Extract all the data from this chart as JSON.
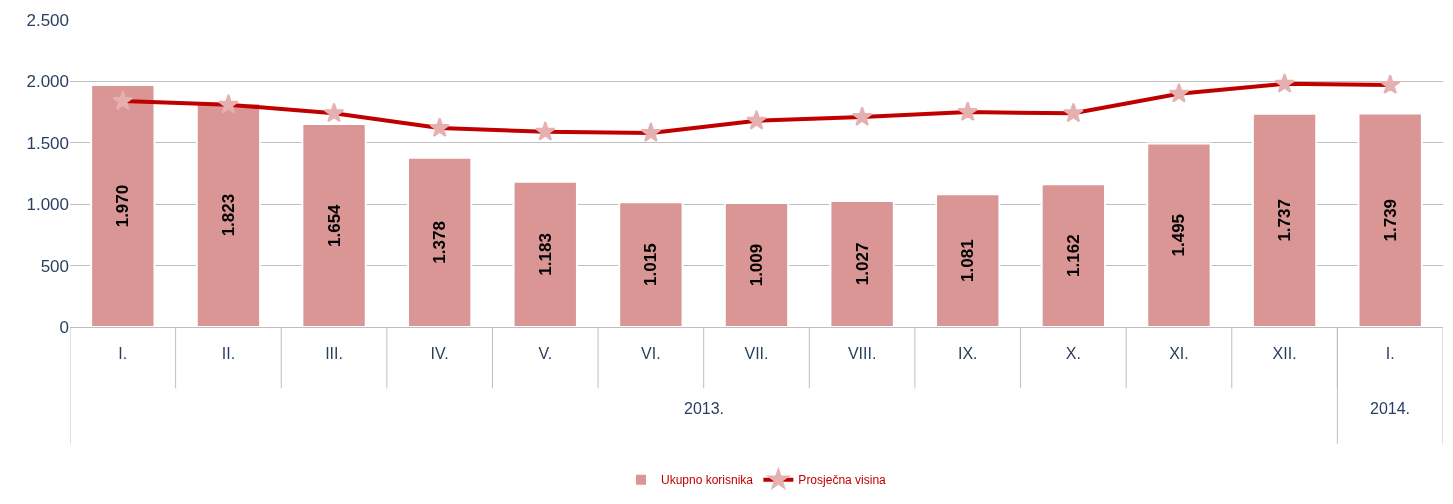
{
  "chart_data": {
    "type": "bar",
    "categories": [
      "I.",
      "II.",
      "III.",
      "IV.",
      "V.",
      "VI.",
      "VII.",
      "VIII.",
      "IX.",
      "X.",
      "XI.",
      "XII.",
      "I."
    ],
    "series": [
      {
        "name": "Ukupno korisnika",
        "color": "#d99694",
        "values": [
          1970,
          1823,
          1654,
          1378,
          1183,
          1015,
          1009,
          1027,
          1081,
          1162,
          1495,
          1737,
          1739
        ],
        "value_labels": [
          "1.970",
          "1.823",
          "1.654",
          "1.378",
          "1.183",
          "1.015",
          "1.009",
          "1.027",
          "1.081",
          "1.162",
          "1.495",
          "1.737",
          "1.739"
        ]
      },
      {
        "name": "Prosječna visina",
        "type": "line",
        "color": "#c00000",
        "marker": "star",
        "values": [
          1840,
          1810,
          1740,
          1620,
          1590,
          1580,
          1680,
          1710,
          1750,
          1740,
          1900,
          1980,
          1970
        ]
      }
    ],
    "ylim": [
      0,
      2500
    ],
    "yticks": [
      {
        "value": 0,
        "label": "0"
      },
      {
        "value": 500,
        "label": "500"
      },
      {
        "value": 1000,
        "label": "1.000"
      },
      {
        "value": 1500,
        "label": "1.500"
      },
      {
        "value": 2000,
        "label": "2.000"
      },
      {
        "value": 2500,
        "label": "2.500"
      }
    ],
    "grid": "y",
    "legend": "bottom",
    "annotations": [
      "2013.",
      "2014."
    ]
  }
}
